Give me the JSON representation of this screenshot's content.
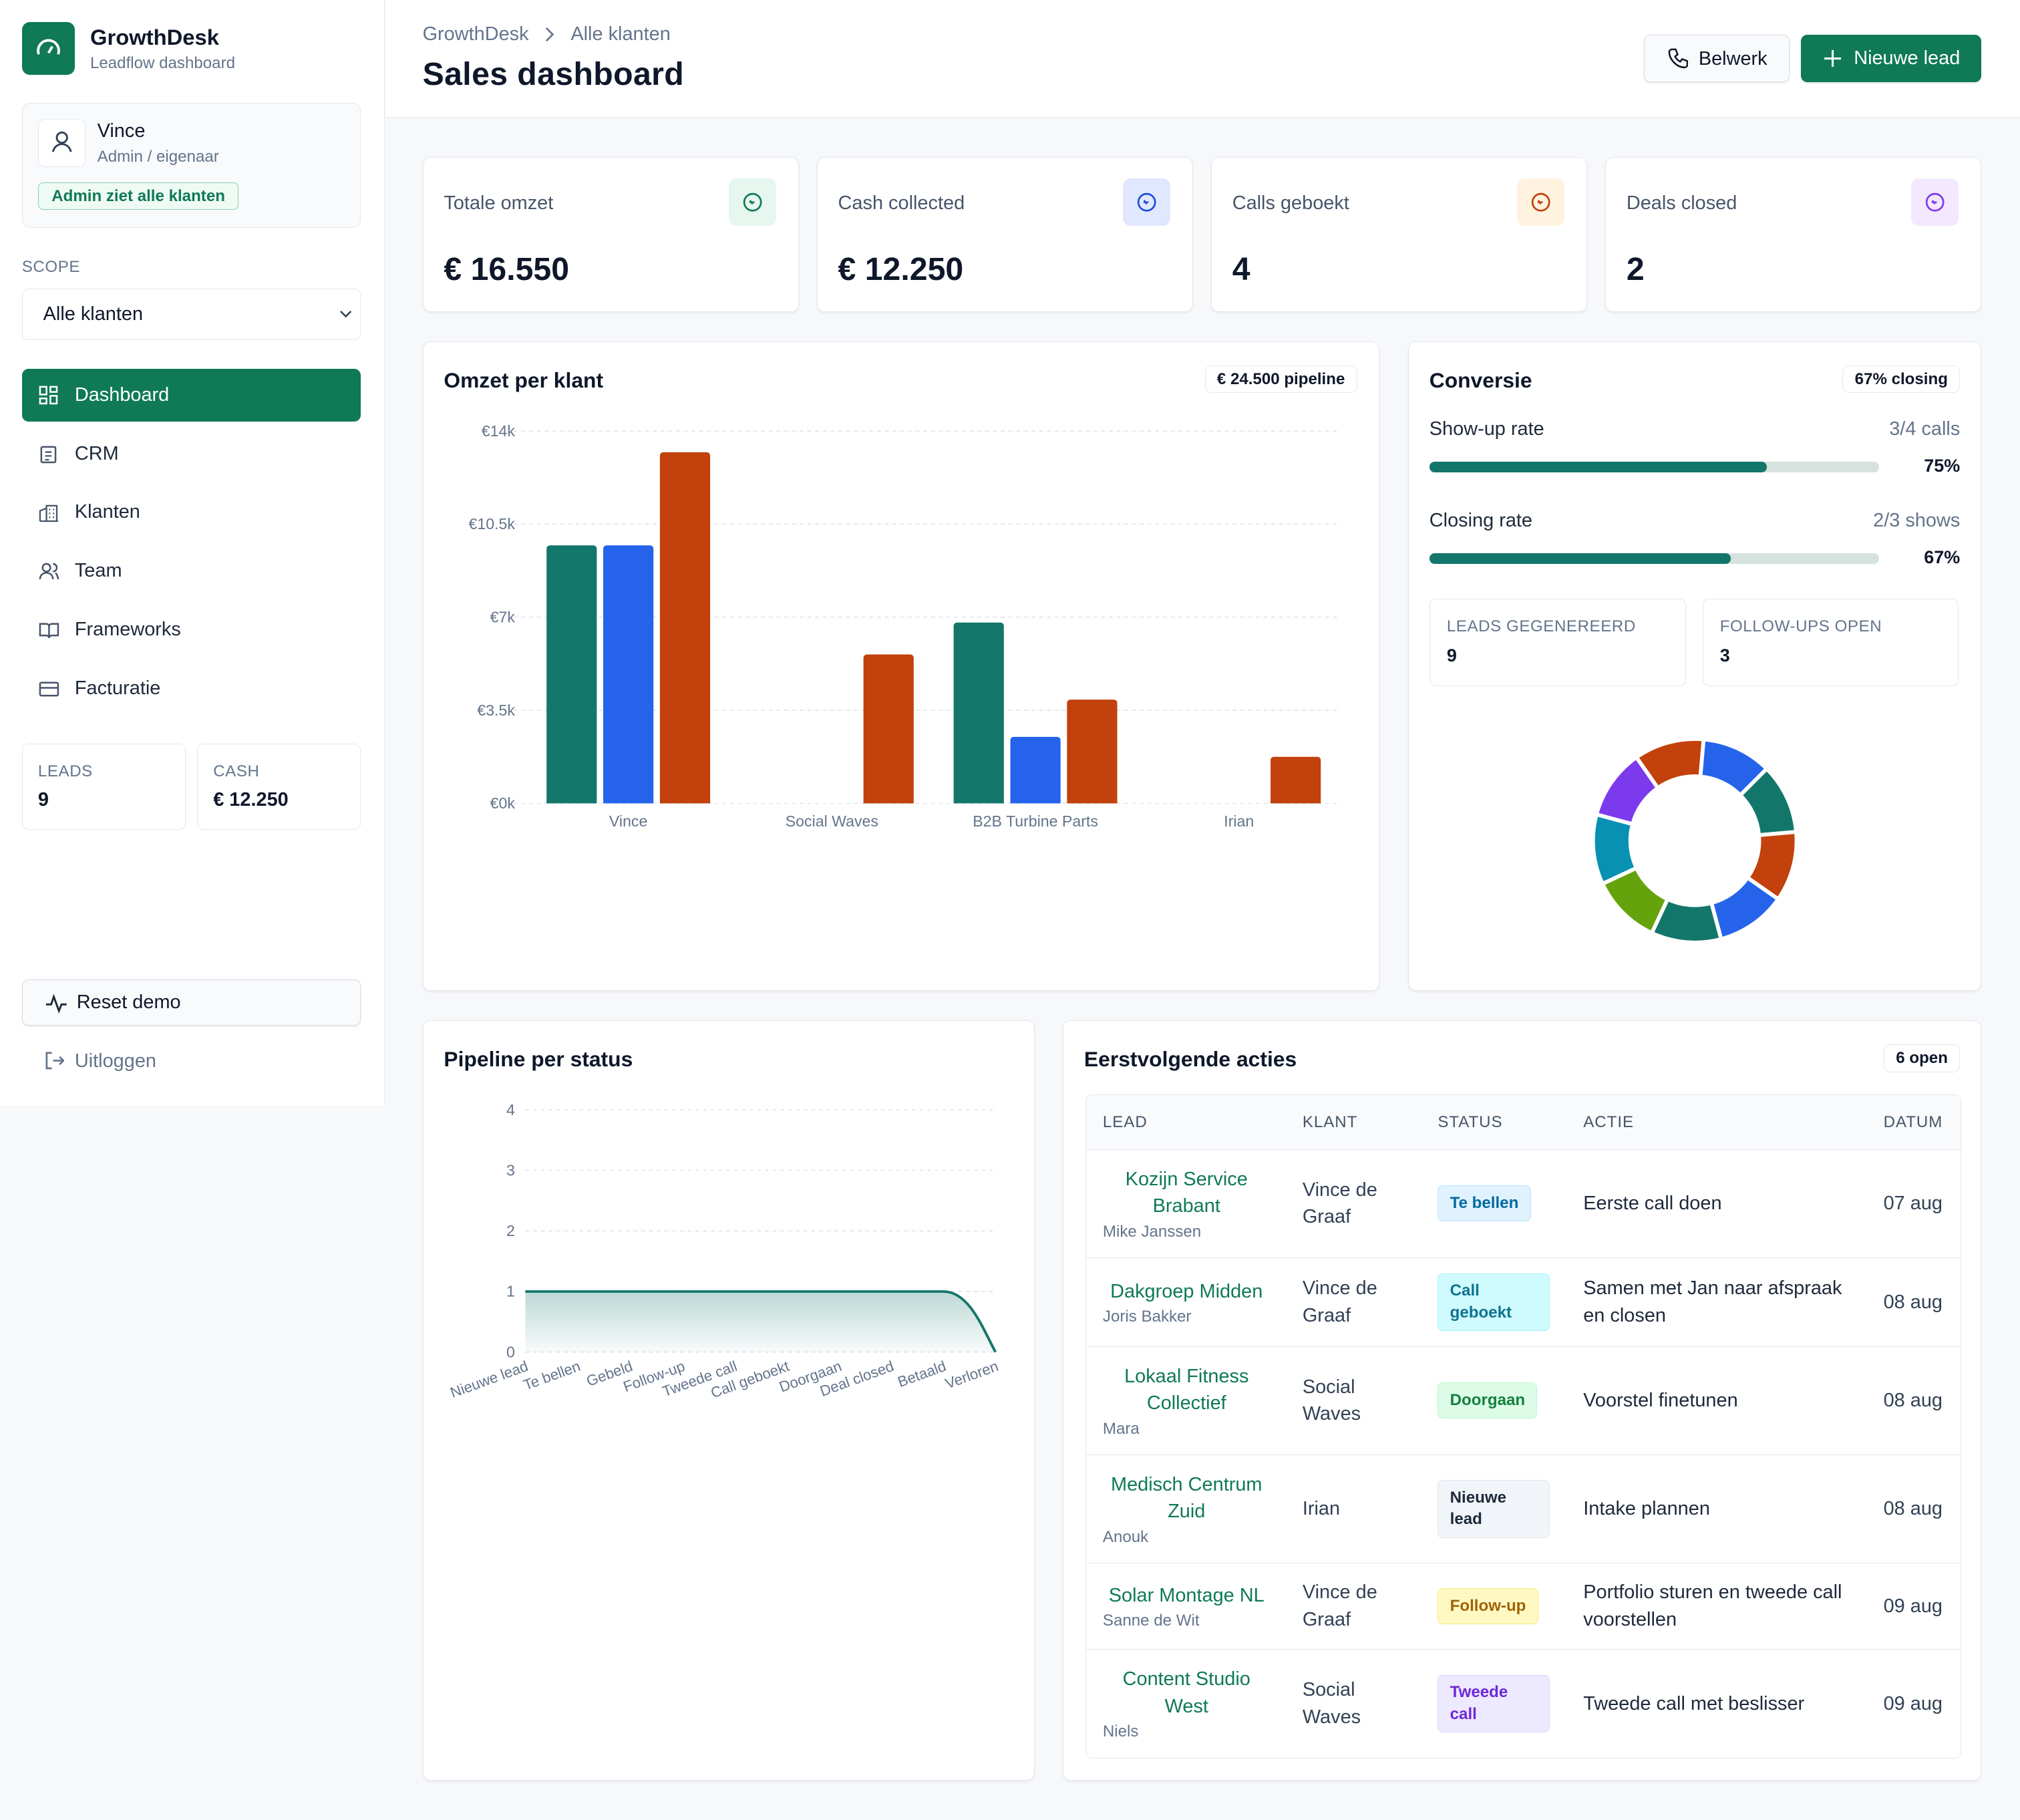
{
  "sidebar": {
    "brand": "GrowthDesk",
    "brand_sub": "Leadflow dashboard",
    "user": {
      "name": "Vince",
      "role": "Admin / eigenaar",
      "badge": "Admin ziet alle klanten"
    },
    "scope_label": "SCOPE",
    "scope_value": "Alle klanten",
    "nav": [
      "Dashboard",
      "CRM",
      "Klanten",
      "Team",
      "Frameworks",
      "Facturatie"
    ],
    "stats": [
      {
        "label": "LEADS",
        "value": 9
      },
      {
        "label": "CASH",
        "value": "€ 12.250"
      }
    ],
    "reset": "Reset demo",
    "logout": "Uitloggen"
  },
  "header": {
    "breadcrumb": [
      "GrowthDesk",
      "Alle klanten"
    ],
    "title": "Sales dashboard",
    "buttons": [
      "Belwerk",
      "Nieuwe lead"
    ]
  },
  "kpis": [
    {
      "label": "Totale omzet",
      "value": "€ 16.550"
    },
    {
      "label": "Cash collected",
      "value": "€ 12.250"
    },
    {
      "label": "Calls geboekt",
      "value": 4
    },
    {
      "label": "Deals closed",
      "value": 2
    }
  ],
  "revenue_chart": {
    "type": "bar",
    "title": "Omzet per klant",
    "badge": "€ 24.500 pipeline",
    "categories": [
      "Vince",
      "Social Waves",
      "B2B Turbine Parts",
      "Irian"
    ],
    "series": [
      {
        "color": "#13766b",
        "values": [
          9700,
          0,
          6800,
          0
        ]
      },
      {
        "color": "#2563eb",
        "values": [
          9700,
          0,
          2500,
          0
        ]
      },
      {
        "color": "#c2410c",
        "values": [
          13200,
          5600,
          3900,
          1750
        ]
      }
    ],
    "ylim": [
      0,
      14000
    ],
    "yticks": [
      {
        "value": 0,
        "label": "€0k"
      },
      {
        "value": 3500,
        "label": "€3.5k"
      },
      {
        "value": 7000,
        "label": "€7k"
      },
      {
        "value": 10500,
        "label": "€10.5k"
      },
      {
        "value": 14000,
        "label": "€14k"
      }
    ],
    "grid": true
  },
  "conversion": {
    "title": "Conversie",
    "badge": "67% closing",
    "rates": [
      {
        "label": "Show-up rate",
        "detail": "3/4 calls",
        "value": 75,
        "value_label": "75%"
      },
      {
        "label": "Closing rate",
        "detail": "2/3 shows",
        "value": 67,
        "value_label": "67%"
      }
    ],
    "stats": [
      {
        "label": "LEADS GEGENEREERD",
        "value": 9
      },
      {
        "label": "FOLLOW-UPS OPEN",
        "value": 3
      }
    ],
    "donut": {
      "type": "pie",
      "values": [
        1,
        1,
        1,
        1,
        1,
        1,
        1,
        1,
        1
      ],
      "colors": [
        "#c2410c",
        "#2563eb",
        "#13766b",
        "#c2410c",
        "#2563eb",
        "#13766b",
        "#65a30d",
        "#0891b2",
        "#7c3aed"
      ]
    }
  },
  "pipeline_chart": {
    "type": "line",
    "title": "Pipeline per status",
    "categories": [
      "Nieuwe lead",
      "Te bellen",
      "Gebeld",
      "Follow-up",
      "Tweede call",
      "Call geboekt",
      "Doorgaan",
      "Deal closed",
      "Betaald",
      "Verloren"
    ],
    "values": [
      1,
      1,
      1,
      1,
      1,
      1,
      1,
      1,
      1,
      0
    ],
    "color": "#13766b",
    "ylim": [
      0,
      4
    ],
    "yticks": [
      0,
      1,
      2,
      3,
      4
    ],
    "grid": true
  },
  "actions": {
    "title": "Eerstvolgende acties",
    "badge": "6 open",
    "columns": [
      "LEAD",
      "KLANT",
      "STATUS",
      "ACTIE",
      "DATUM"
    ],
    "rows": [
      {
        "lead": "Kozijn Service Brabant",
        "contact": "Mike Janssen",
        "klant": "Vince de Graaf",
        "status": "Te bellen",
        "actie": "Eerste call doen",
        "datum": "07 aug"
      },
      {
        "lead": "Dakgroep Midden",
        "contact": "Joris Bakker",
        "klant": "Vince de Graaf",
        "status": "Call geboekt",
        "actie": "Samen met Jan naar afspraak en closen",
        "datum": "08 aug"
      },
      {
        "lead": "Lokaal Fitness Collectief",
        "contact": "Mara",
        "klant": "Social Waves",
        "status": "Doorgaan",
        "actie": "Voorstel finetunen",
        "datum": "08 aug"
      },
      {
        "lead": "Medisch Centrum Zuid",
        "contact": "Anouk",
        "klant": "Irian",
        "status": "Nieuwe lead",
        "actie": "Intake plannen",
        "datum": "08 aug"
      },
      {
        "lead": "Solar Montage NL",
        "contact": "Sanne de Wit",
        "klant": "Vince de Graaf",
        "status": "Follow-up",
        "actie": "Portfolio sturen en tweede call voorstellen",
        "datum": "09 aug"
      },
      {
        "lead": "Content Studio West",
        "contact": "Niels",
        "klant": "Social Waves",
        "status": "Tweede call",
        "actie": "Tweede call met beslisser",
        "datum": "09 aug"
      }
    ]
  }
}
